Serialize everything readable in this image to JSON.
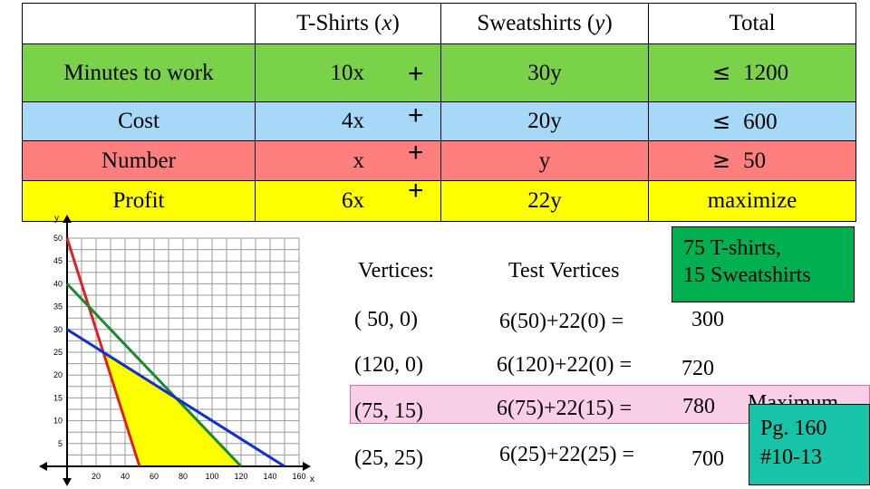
{
  "table": {
    "headers": {
      "blank": "",
      "col_x": "T-Shirts (",
      "col_x_var": "x",
      "col_x_close": ")",
      "col_y": "Sweatshirts (",
      "col_y_var": "y",
      "col_y_close": ")",
      "total": "Total"
    },
    "rows": [
      {
        "label": "Minutes to work",
        "x_term": "10x",
        "op": "+",
        "y_term": "30y",
        "rel": "≤",
        "total": "1200",
        "color": "#7ad24a"
      },
      {
        "label": "Cost",
        "x_term": "4x",
        "op": "+",
        "y_term": "20y",
        "rel": "≤",
        "total": "600",
        "color": "#a6d8f7"
      },
      {
        "label": "Number",
        "x_term": "x",
        "op": "+",
        "y_term": "y",
        "rel": "≥",
        "total": "50",
        "color": "#ff7f7f"
      },
      {
        "label": "Profit",
        "x_term": "6x",
        "op": "+",
        "y_term": "22y",
        "rel": "",
        "total": "maximize",
        "color": "#ffff00"
      }
    ]
  },
  "chart_data": {
    "type": "line",
    "xlabel": "x",
    "ylabel": "y",
    "xlim": [
      0,
      160
    ],
    "ylim": [
      0,
      50
    ],
    "x_ticks": [
      20,
      40,
      60,
      80,
      100,
      120,
      140,
      160
    ],
    "y_ticks": [
      5,
      10,
      15,
      20,
      25,
      30,
      35,
      40,
      45,
      50
    ],
    "grid": true,
    "series": [
      {
        "color": "#e02020",
        "x": [
          0,
          50
        ],
        "y": [
          50,
          0
        ]
      },
      {
        "color": "#1a8a2a",
        "x": [
          0,
          120
        ],
        "y": [
          40,
          0
        ]
      },
      {
        "color": "#1030d0",
        "x": [
          0,
          150
        ],
        "y": [
          30,
          0
        ]
      }
    ],
    "feasible_region": {
      "color": "#ffff00",
      "x": [
        50,
        120,
        75,
        25
      ],
      "y": [
        0,
        0,
        15,
        25
      ]
    }
  },
  "vertices": {
    "heading": "Vertices:",
    "test_heading": "Test Vertices",
    "items": [
      {
        "point": "( 50, 0)",
        "expr": "6(50)+22(0) =",
        "result": "300"
      },
      {
        "point": "(120, 0)",
        "expr": "6(120)+22(0) =",
        "result": "720"
      },
      {
        "point": "(75, 15)",
        "expr": "6(75)+22(15) =",
        "result": "780"
      },
      {
        "point": "(25, 25)",
        "expr": "6(25)+22(25) =",
        "result": "700"
      }
    ],
    "maximum_label": "Maximum"
  },
  "notes": {
    "answer_line1": "75 T-shirts,",
    "answer_line2": "15 Sweatshirts",
    "page_line1": "Pg. 160",
    "page_line2": "#10-13"
  }
}
